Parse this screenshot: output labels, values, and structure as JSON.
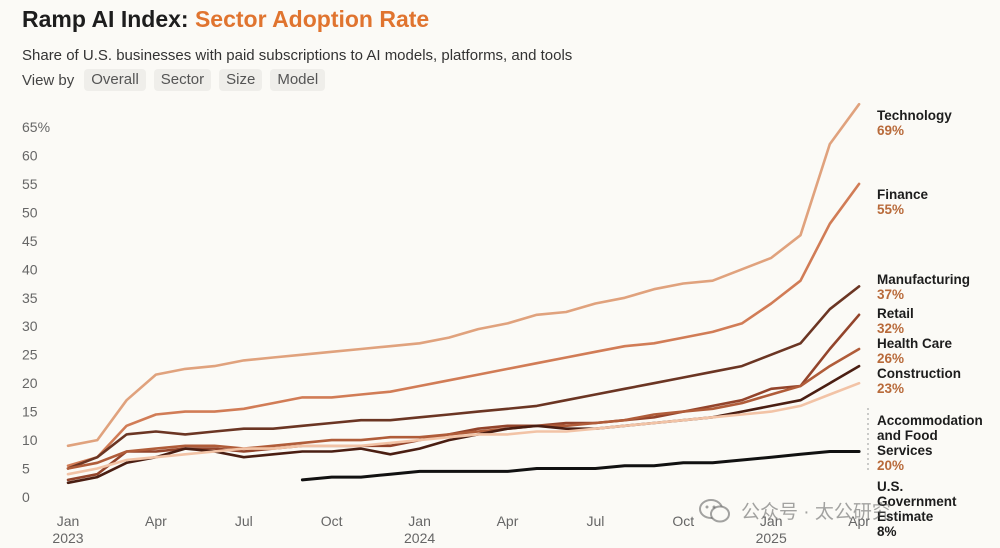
{
  "header": {
    "title_main": "Ramp AI Index: ",
    "title_accent": "Sector Adoption Rate",
    "subtitle": "Share of U.S. businesses with paid subscriptions to AI models, platforms, and tools"
  },
  "view_by": {
    "label": "View by",
    "options": [
      "Overall",
      "Sector",
      "Size",
      "Model"
    ]
  },
  "watermark": {
    "text": "公众号 · 太公研究",
    "icon": "wechat-icon"
  },
  "chart_data": {
    "type": "line",
    "title": "Ramp AI Index: Sector Adoption Rate",
    "subtitle": "Share of U.S. businesses with paid subscriptions to AI models, platforms, and tools",
    "xlabel": "",
    "ylabel": "",
    "ylim": [
      0,
      65
    ],
    "y_ticks": [
      0,
      5,
      10,
      15,
      20,
      25,
      30,
      35,
      40,
      45,
      50,
      55,
      60,
      65
    ],
    "y_tick_labels": [
      "0",
      "5",
      "10",
      "15",
      "20",
      "25",
      "30",
      "35",
      "40",
      "45",
      "50",
      "55",
      "60",
      "65%"
    ],
    "x_ticks": [
      {
        "month": "2023-01",
        "label": "Jan",
        "sublabel": "2023"
      },
      {
        "month": "2023-04",
        "label": "Apr",
        "sublabel": ""
      },
      {
        "month": "2023-07",
        "label": "Jul",
        "sublabel": ""
      },
      {
        "month": "2023-10",
        "label": "Oct",
        "sublabel": ""
      },
      {
        "month": "2024-01",
        "label": "Jan",
        "sublabel": "2024"
      },
      {
        "month": "2024-04",
        "label": "Apr",
        "sublabel": ""
      },
      {
        "month": "2024-07",
        "label": "Jul",
        "sublabel": ""
      },
      {
        "month": "2024-10",
        "label": "Oct",
        "sublabel": ""
      },
      {
        "month": "2025-01",
        "label": "Jan",
        "sublabel": "2025"
      },
      {
        "month": "2025-04",
        "label": "Apr",
        "sublabel": ""
      }
    ],
    "grid": false,
    "legend": "direct labels at line ends, right",
    "x": [
      "2023-01",
      "2023-02",
      "2023-03",
      "2023-04",
      "2023-05",
      "2023-06",
      "2023-07",
      "2023-08",
      "2023-09",
      "2023-10",
      "2023-11",
      "2023-12",
      "2024-01",
      "2024-02",
      "2024-03",
      "2024-04",
      "2024-05",
      "2024-06",
      "2024-07",
      "2024-08",
      "2024-09",
      "2024-10",
      "2024-11",
      "2024-12",
      "2025-01",
      "2025-02",
      "2025-03",
      "2025-04"
    ],
    "series": [
      {
        "name": "Technology",
        "end_label": "69%",
        "color": "#e0a27d",
        "label_color": "#b86a3a",
        "values": [
          9,
          10,
          17,
          21.5,
          22.5,
          23,
          24,
          24.5,
          25,
          25.5,
          26,
          26.5,
          27,
          28,
          29.5,
          30.5,
          32,
          32.5,
          34,
          35,
          36.5,
          37.5,
          38,
          40,
          42,
          46,
          62,
          69
        ]
      },
      {
        "name": "Finance",
        "end_label": "55%",
        "color": "#d17c56",
        "label_color": "#b86a3a",
        "values": [
          5.5,
          7,
          12.5,
          14.5,
          15,
          15,
          15.5,
          16.5,
          17.5,
          17.5,
          18,
          18.5,
          19.5,
          20.5,
          21.5,
          22.5,
          23.5,
          24.5,
          25.5,
          26.5,
          27,
          28,
          29,
          30.5,
          34,
          38,
          48,
          55
        ]
      },
      {
        "name": "Manufacturing",
        "end_label": "37%",
        "color": "#6b3523",
        "label_color": "#b86a3a",
        "values": [
          5,
          7,
          11,
          11.5,
          11,
          11.5,
          12,
          12,
          12.5,
          13,
          13.5,
          13.5,
          14,
          14.5,
          15,
          15.5,
          16,
          17,
          18,
          19,
          20,
          21,
          22,
          23,
          25,
          27,
          33,
          37
        ]
      },
      {
        "name": "Retail",
        "end_label": "32%",
        "color": "#93442b",
        "label_color": "#b86a3a",
        "values": [
          3,
          4,
          8,
          8,
          8.5,
          8.5,
          8,
          8.5,
          9,
          9,
          9,
          9,
          10,
          11,
          12,
          12.5,
          12.5,
          13,
          13,
          13.5,
          14,
          15,
          16,
          17,
          19,
          19.5,
          26,
          32
        ]
      },
      {
        "name": "Health Care",
        "end_label": "26%",
        "color": "#b05c39",
        "label_color": "#b86a3a",
        "values": [
          5,
          6,
          8,
          8.5,
          9,
          9,
          8.5,
          9,
          9.5,
          10,
          10,
          10.5,
          10.5,
          11,
          11.5,
          12,
          12.5,
          12.5,
          13,
          13.5,
          14.5,
          15,
          15.5,
          16.5,
          18,
          19.5,
          23,
          26
        ]
      },
      {
        "name": "Construction",
        "end_label": "23%",
        "color": "#4a1e12",
        "label_color": "#b86a3a",
        "values": [
          2.5,
          3.5,
          6,
          7,
          8.5,
          8,
          7,
          7.5,
          8,
          8,
          8.5,
          7.5,
          8.5,
          10,
          11,
          12,
          12.5,
          12,
          12,
          12.5,
          13,
          13.5,
          14,
          15,
          16,
          17,
          20,
          23
        ]
      },
      {
        "name": "Accommodation and Food Services",
        "end_label": "20%",
        "color": "#f2c3a6",
        "label_color": "#b86a3a",
        "values": [
          4,
          5,
          6.5,
          7,
          7.5,
          8,
          8.5,
          8.5,
          9,
          9,
          9,
          9.5,
          10,
          10.5,
          11,
          11,
          11.5,
          11.5,
          12,
          12.5,
          13,
          13.5,
          14,
          14.5,
          15,
          16,
          18,
          20
        ]
      },
      {
        "name": "U.S. Government Estimate",
        "end_label": "8%",
        "color": "#111111",
        "label_color": "#1d1d1d",
        "values": [
          null,
          null,
          null,
          null,
          null,
          null,
          null,
          null,
          3,
          3.5,
          3.5,
          4,
          4.5,
          4.5,
          4.5,
          4.5,
          5,
          5,
          5,
          5.5,
          5.5,
          6,
          6,
          6.5,
          7,
          7.5,
          8,
          8
        ]
      }
    ]
  }
}
